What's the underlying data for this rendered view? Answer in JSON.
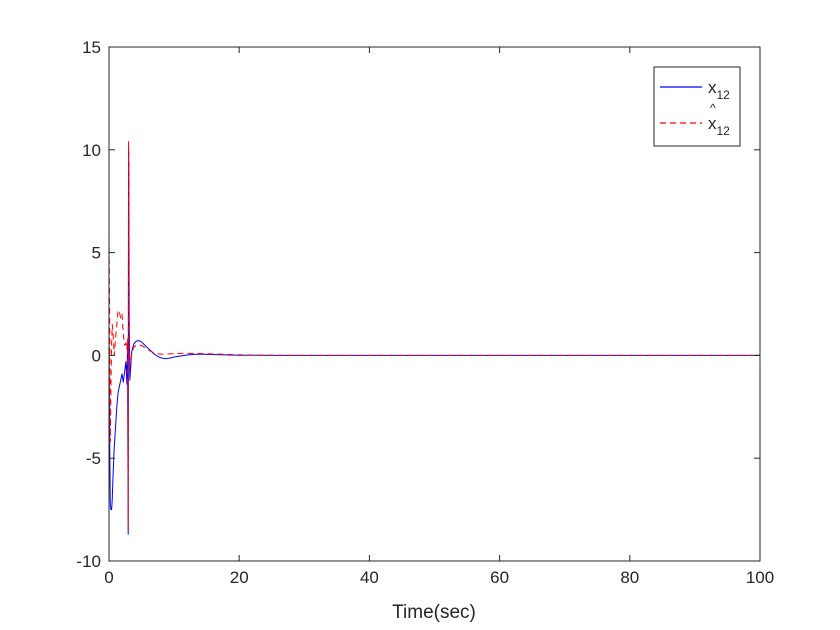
{
  "chart_data": {
    "type": "line",
    "title": "",
    "xlabel": "Time(sec)",
    "ylabel": "",
    "xlim": [
      0,
      100
    ],
    "ylim": [
      -10,
      15
    ],
    "xticks": [
      0,
      20,
      40,
      60,
      80,
      100
    ],
    "yticks": [
      -10,
      -5,
      0,
      5,
      10,
      15
    ],
    "grid": false,
    "legend_position": "top-right",
    "series": [
      {
        "name": "x",
        "name_subscript": "12",
        "color": "#0000ff",
        "style": "solid",
        "x": [
          0,
          0.1,
          0.2,
          0.3,
          0.4,
          0.5,
          0.6,
          0.8,
          1.0,
          1.2,
          1.4,
          1.6,
          1.8,
          2.0,
          2.2,
          2.4,
          2.6,
          2.75,
          2.85,
          2.95,
          3.0,
          3.05,
          3.1,
          3.2,
          3.35,
          3.5,
          3.8,
          4.2,
          4.6,
          5.0,
          5.5,
          6.0,
          6.5,
          7.0,
          7.5,
          8.0,
          8.5,
          9.0,
          9.5,
          10,
          11,
          12,
          13,
          14,
          15,
          17,
          20,
          25,
          30,
          40,
          60,
          80,
          100
        ],
        "y": [
          1.2,
          -4.0,
          -7.3,
          -7.5,
          -7.5,
          -7.0,
          -6.0,
          -4.5,
          -3.5,
          -2.5,
          -1.8,
          -1.5,
          -1.2,
          -0.9,
          -1.3,
          -0.8,
          -0.3,
          -1.4,
          0.6,
          -8.7,
          10.2,
          9.0,
          1.5,
          -1.2,
          -0.5,
          0.2,
          0.55,
          0.7,
          0.72,
          0.65,
          0.5,
          0.35,
          0.2,
          0.05,
          -0.05,
          -0.12,
          -0.16,
          -0.15,
          -0.12,
          -0.08,
          -0.03,
          0.02,
          0.05,
          0.06,
          0.05,
          0.03,
          0.01,
          0.0,
          0.0,
          0.0,
          0.0,
          0.0,
          0.0
        ]
      },
      {
        "name": "x",
        "name_hat": "^",
        "name_subscript": "12",
        "color": "#ff0000",
        "style": "dashed",
        "x": [
          0,
          0.1,
          0.2,
          0.3,
          0.4,
          0.5,
          0.6,
          0.8,
          1.0,
          1.2,
          1.4,
          1.6,
          1.8,
          2.0,
          2.2,
          2.4,
          2.6,
          2.75,
          2.85,
          2.95,
          3.0,
          3.05,
          3.1,
          3.2,
          3.35,
          3.5,
          3.8,
          4.2,
          4.6,
          5.0,
          5.5,
          6.0,
          6.5,
          7.0,
          7.5,
          8.0,
          8.5,
          9.0,
          9.5,
          10,
          11,
          12,
          13,
          14,
          15,
          17,
          20,
          25,
          30,
          40,
          60,
          80,
          100
        ],
        "y": [
          6.2,
          2.0,
          -4.2,
          -1.5,
          0.5,
          1.5,
          1.2,
          0.0,
          0.8,
          1.5,
          2.2,
          2.1,
          1.8,
          2.0,
          1.0,
          0.5,
          0.6,
          0.3,
          0.8,
          -8.5,
          10.4,
          9.5,
          2.0,
          -0.5,
          -0.2,
          0.1,
          0.4,
          0.5,
          0.52,
          0.48,
          0.38,
          0.28,
          0.18,
          0.12,
          0.08,
          0.06,
          0.06,
          0.07,
          0.08,
          0.09,
          0.1,
          0.1,
          0.1,
          0.09,
          0.08,
          0.06,
          0.03,
          0.01,
          0.0,
          0.0,
          0.0,
          0.0,
          0.0
        ]
      }
    ]
  }
}
